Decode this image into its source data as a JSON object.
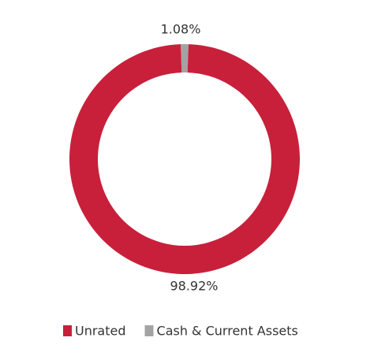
{
  "chart_data": {
    "type": "donut",
    "categories": [
      "Unrated",
      "Cash & Current Assets"
    ],
    "values": [
      98.92,
      1.08
    ],
    "value_labels": [
      "98.92%",
      "1.08%"
    ],
    "colors": [
      "#c8203a",
      "#a3a3a3"
    ]
  }
}
